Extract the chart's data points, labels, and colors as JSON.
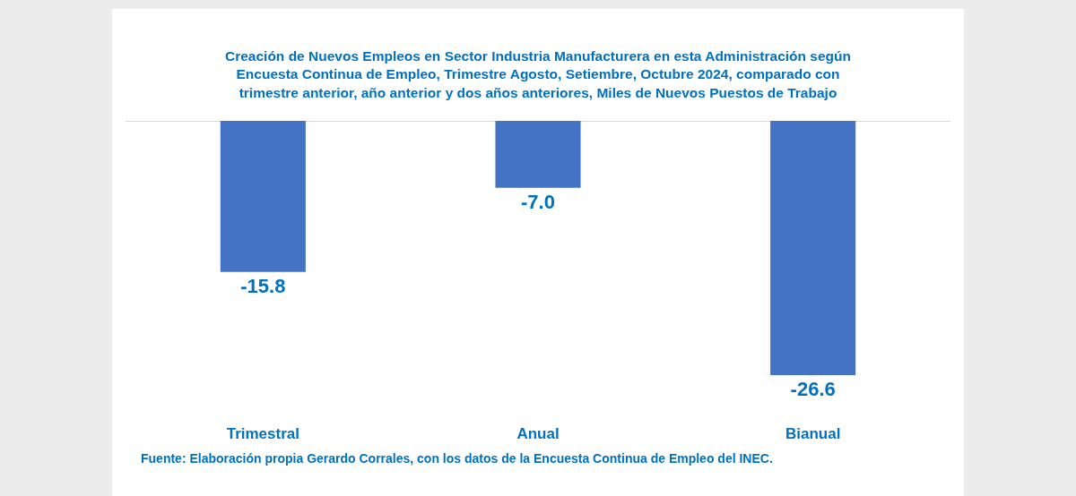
{
  "chart_data": {
    "type": "bar",
    "title": "Creación de Nuevos Empleos en Sector Industria Manufacturera en esta Administración según Encuesta Continua de Empleo, Trimestre Agosto, Setiembre, Octubre 2024, comparado con trimestre anterior, año anterior y dos años anteriores, Miles de Nuevos Puestos de Trabajo",
    "categories": [
      "Trimestral",
      "Anual",
      "Bianual"
    ],
    "values": [
      -15.8,
      -7.0,
      -26.6
    ],
    "color": "#4472c4",
    "value_labels": [
      "-15.8",
      "-7.0",
      "-26.6"
    ],
    "tick_labels": "x",
    "grid": false,
    "annotations": [
      "Fuente: Elaboración propia Gerardo Corrales, con los datos de la Encuesta Continua de Empleo del INEC."
    ]
  }
}
